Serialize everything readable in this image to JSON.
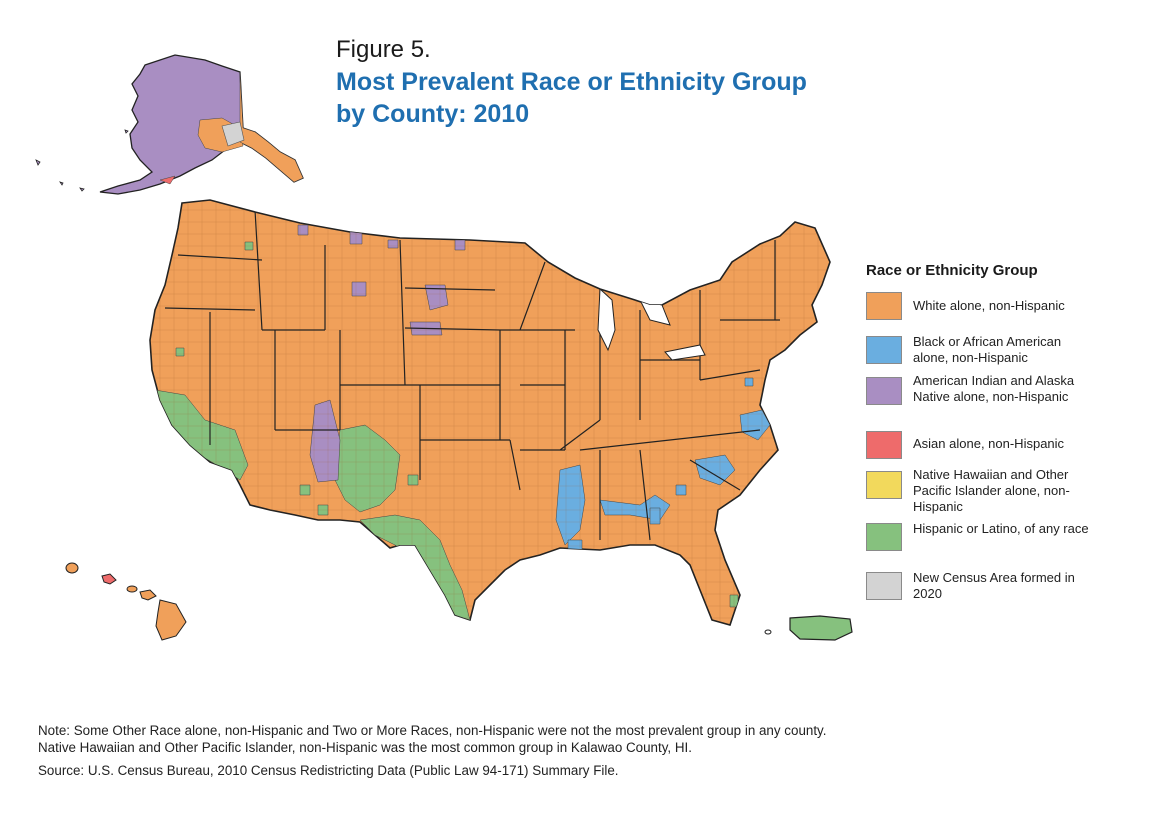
{
  "figure": {
    "label": "Figure 5.",
    "title_line1": "Most Prevalent Race or Ethnicity Group",
    "title_line2": "by County: 2010"
  },
  "legend": {
    "title": "Race or Ethnicity Group",
    "items": [
      {
        "label": "White alone, non-Hispanic",
        "color": "#f0a05a"
      },
      {
        "label": "Black or African American alone, non-Hispanic",
        "color": "#6aaee0"
      },
      {
        "label": "American Indian and Alaska Native alone, non-Hispanic",
        "color": "#a98ec2"
      },
      {
        "label": "Asian alone, non-Hispanic",
        "color": "#ee6b6b"
      },
      {
        "label": "Native Hawaiian and Other Pacific Islander alone, non-Hispanic",
        "color": "#f2d95c"
      },
      {
        "label": "Hispanic or Latino, of any race",
        "color": "#86c17e"
      },
      {
        "label": "New Census Area formed in 2020",
        "color": "#d3d3d3"
      }
    ]
  },
  "notes": {
    "note1": "Note: Some Other Race alone, non-Hispanic and Two or More Races, non-Hispanic were not the most prevalent group in any county.",
    "note2": "Native Hawaiian and Other Pacific Islander, non-Hispanic was the most common group in Kalawao County, HI.",
    "source": "Source: U.S. Census Bureau, 2010 Census Redistricting Data (Public Law 94-171) Summary File."
  },
  "colors": {
    "white": "#f0a05a",
    "black": "#6aaee0",
    "aian": "#a98ec2",
    "asian": "#ee6b6b",
    "nhpi": "#f2d95c",
    "hispanic": "#86c17e",
    "new_area": "#d3d3d3",
    "title_blue": "#1f6fb0"
  }
}
